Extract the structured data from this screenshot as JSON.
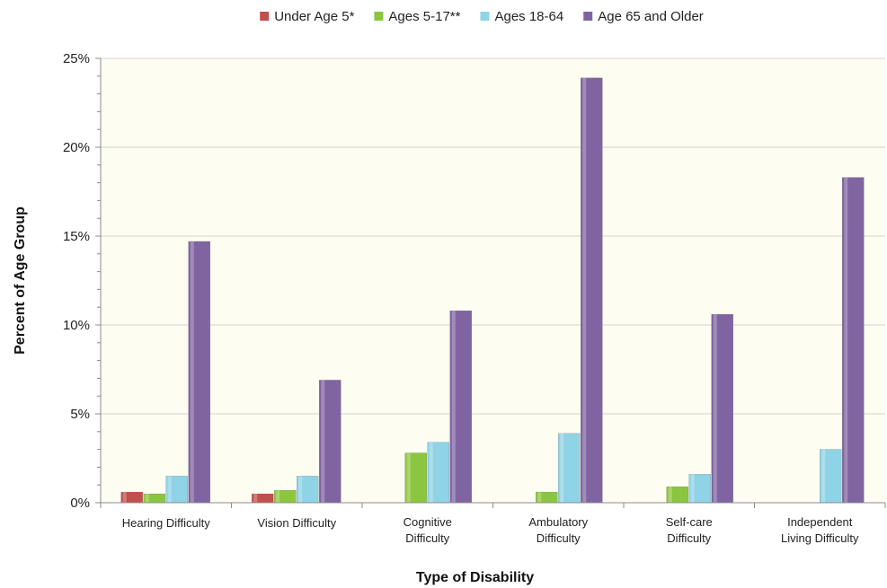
{
  "chart_data": {
    "type": "bar",
    "title": "",
    "xlabel": "Type of Disability",
    "ylabel": "Percent of Age Group",
    "ylim": [
      0,
      25
    ],
    "yticks": [
      "0%",
      "5%",
      "10%",
      "15%",
      "20%",
      "25%"
    ],
    "ytick_values": [
      0,
      5,
      10,
      15,
      20,
      25
    ],
    "categories": [
      [
        "Hearing Difficulty"
      ],
      [
        "Vision Difficulty"
      ],
      [
        "Cognitive",
        "Difficulty"
      ],
      [
        "Ambulatory",
        "Difficulty"
      ],
      [
        "Self-care",
        "Difficulty"
      ],
      [
        "Independent",
        "Living Difficulty"
      ]
    ],
    "series": [
      {
        "name": "Under Age 5*",
        "color": "#c0504d",
        "values": [
          0.6,
          0.5,
          null,
          null,
          null,
          null
        ]
      },
      {
        "name": "Ages 5-17**",
        "color": "#8cc63f",
        "values": [
          0.5,
          0.7,
          2.8,
          0.6,
          0.9,
          null
        ]
      },
      {
        "name": "Ages 18-64",
        "color": "#8fd3e6",
        "values": [
          1.5,
          1.5,
          3.4,
          3.9,
          1.6,
          3.0
        ]
      },
      {
        "name": "Age 65 and Older",
        "color": "#8064a2",
        "values": [
          14.7,
          6.9,
          10.8,
          23.9,
          10.6,
          18.3
        ]
      }
    ],
    "grid": true,
    "legend_position": "top"
  }
}
